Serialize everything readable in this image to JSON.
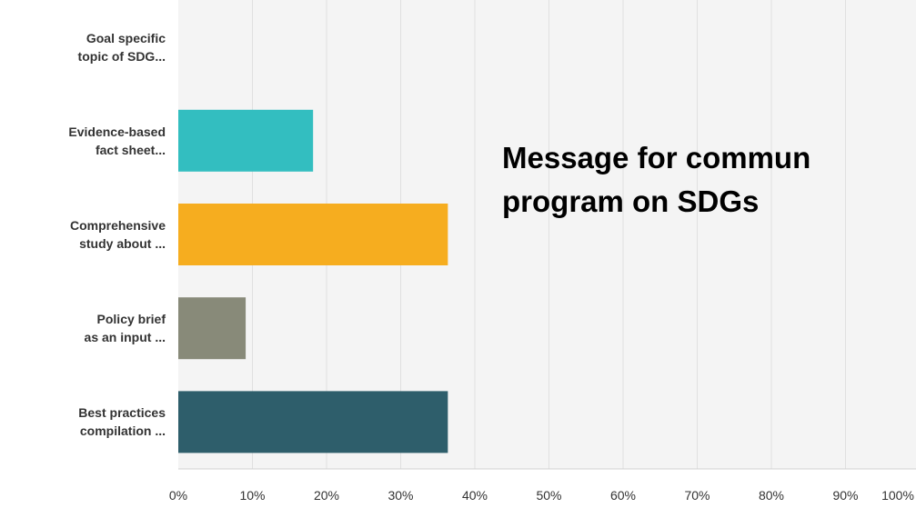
{
  "chart_data": {
    "type": "bar",
    "orientation": "horizontal",
    "categories": [
      "Goal specific\ntopic of SDG...",
      "Evidence-based\nfact sheet...",
      "Comprehensive\nstudy about ...",
      "Policy brief\nas an input ...",
      "Best practices\ncompilation ..."
    ],
    "values": [
      0,
      18.18,
      36.36,
      9.09,
      36.36
    ],
    "bar_colors": [
      "#2ea3a8",
      "#33bec0",
      "#f6ad1f",
      "#888a79",
      "#2e5e6b"
    ],
    "xlim": [
      0,
      100
    ],
    "x_ticks": [
      "0%",
      "10%",
      "20%",
      "30%",
      "40%",
      "50%",
      "60%",
      "70%",
      "80%",
      "90%",
      "100%"
    ],
    "grid": true
  },
  "overlay_title": "Message for commun\nprogram on SDGs"
}
